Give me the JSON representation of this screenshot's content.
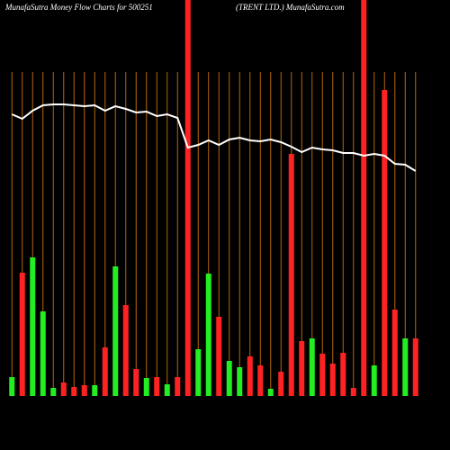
{
  "chart_data": {
    "type": "bar",
    "title": "MunafaSutra  Money Flow  Charts for 500251",
    "subtitle": "(TRENT LTD.) MunafaSutra.com",
    "categories": [
      null,
      null,
      null,
      null,
      null,
      null,
      null,
      null,
      null,
      null,
      null,
      null,
      null,
      null,
      null,
      null,
      null,
      null,
      null,
      null,
      null,
      null,
      null,
      null,
      null,
      null,
      null,
      null,
      null,
      null,
      null,
      null,
      null,
      null,
      null,
      null,
      null,
      null,
      null,
      null
    ],
    "values": [
      21,
      137,
      154,
      94,
      9,
      15,
      10,
      12,
      12,
      54,
      144,
      101,
      30,
      20,
      21,
      13,
      21,
      440,
      52,
      136,
      88,
      39,
      32,
      44,
      34,
      8,
      27,
      269,
      61,
      64,
      47,
      36,
      48,
      9,
      440,
      34,
      340,
      96,
      64,
      64
    ],
    "colors": [
      "#22ee22",
      "#ff2222",
      "#22ee22",
      "#22ee22",
      "#22ee22",
      "#ff2222",
      "#ff2222",
      "#ff2222",
      "#22ee22",
      "#ff2222",
      "#22ee22",
      "#ff2222",
      "#ff2222",
      "#22ee22",
      "#ff2222",
      "#22ee22",
      "#ff2222",
      "#ff2222",
      "#22ee22",
      "#22ee22",
      "#ff2222",
      "#22ee22",
      "#22ee22",
      "#ff2222",
      "#ff2222",
      "#22ee22",
      "#ff2222",
      "#ff2222",
      "#ff2222",
      "#22ee22",
      "#ff2222",
      "#ff2222",
      "#ff2222",
      "#ff2222",
      "#ff2222",
      "#22ee22",
      "#ff2222",
      "#ff2222",
      "#22ee22",
      "#ff2222"
    ],
    "line": {
      "color": "#ffffff",
      "values": [
        313,
        308,
        317,
        323,
        324,
        324,
        323,
        322,
        323,
        317,
        322,
        319,
        315,
        316,
        311,
        313,
        309,
        276,
        279,
        284,
        279,
        285,
        287,
        284,
        283,
        285,
        282,
        277,
        271,
        276,
        274,
        273,
        270,
        270,
        267,
        269,
        267,
        258,
        257,
        250
      ]
    },
    "separator_color": "#b8650a",
    "ylim": [
      0,
      440
    ]
  }
}
